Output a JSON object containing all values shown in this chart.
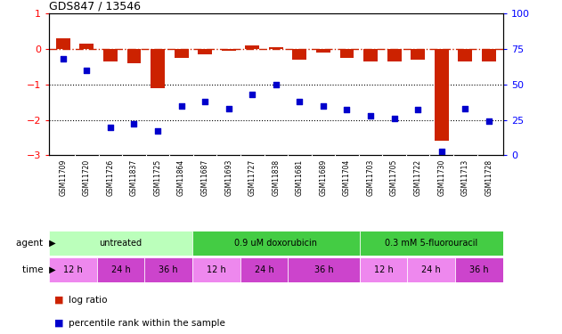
{
  "title": "GDS847 / 13546",
  "samples": [
    "GSM11709",
    "GSM11720",
    "GSM11726",
    "GSM11837",
    "GSM11725",
    "GSM11864",
    "GSM11687",
    "GSM11693",
    "GSM11727",
    "GSM11838",
    "GSM11681",
    "GSM11689",
    "GSM11704",
    "GSM11703",
    "GSM11705",
    "GSM11722",
    "GSM11730",
    "GSM11713",
    "GSM11728"
  ],
  "log_ratio": [
    0.3,
    0.15,
    -0.35,
    -0.4,
    -1.1,
    -0.25,
    -0.15,
    -0.05,
    0.1,
    0.05,
    -0.3,
    -0.1,
    -0.25,
    -0.35,
    -0.35,
    -0.3,
    -2.6,
    -0.35,
    -0.35
  ],
  "pct_rank": [
    68,
    60,
    20,
    22,
    17,
    35,
    38,
    33,
    43,
    50,
    38,
    35,
    32,
    28,
    26,
    32,
    3,
    33,
    24
  ],
  "bar_color": "#cc2200",
  "dot_color": "#0000cc",
  "left_yticks": [
    1,
    0,
    -1,
    -2,
    -3
  ],
  "right_yticks": [
    100,
    75,
    50,
    25,
    0
  ],
  "agent_groups": [
    {
      "label": "untreated",
      "start": 0,
      "end": 6,
      "color": "#bbffbb"
    },
    {
      "label": "0.9 uM doxorubicin",
      "start": 6,
      "end": 13,
      "color": "#44cc44"
    },
    {
      "label": "0.3 mM 5-fluorouracil",
      "start": 13,
      "end": 19,
      "color": "#44cc44"
    }
  ],
  "time_groups": [
    {
      "label": "12 h",
      "start": 0,
      "end": 2,
      "color": "#ee88ee"
    },
    {
      "label": "24 h",
      "start": 2,
      "end": 4,
      "color": "#cc44cc"
    },
    {
      "label": "36 h",
      "start": 4,
      "end": 6,
      "color": "#cc44cc"
    },
    {
      "label": "12 h",
      "start": 6,
      "end": 8,
      "color": "#ee88ee"
    },
    {
      "label": "24 h",
      "start": 8,
      "end": 10,
      "color": "#cc44cc"
    },
    {
      "label": "36 h",
      "start": 10,
      "end": 13,
      "color": "#cc44cc"
    },
    {
      "label": "12 h",
      "start": 13,
      "end": 15,
      "color": "#ee88ee"
    },
    {
      "label": "24 h",
      "start": 15,
      "end": 17,
      "color": "#ee88ee"
    },
    {
      "label": "36 h",
      "start": 17,
      "end": 19,
      "color": "#cc44cc"
    }
  ],
  "agent_label": "agent",
  "time_label": "time",
  "legend_bar_label": "log ratio",
  "legend_dot_label": "percentile rank within the sample",
  "xlabel_bg_color": "#cccccc"
}
